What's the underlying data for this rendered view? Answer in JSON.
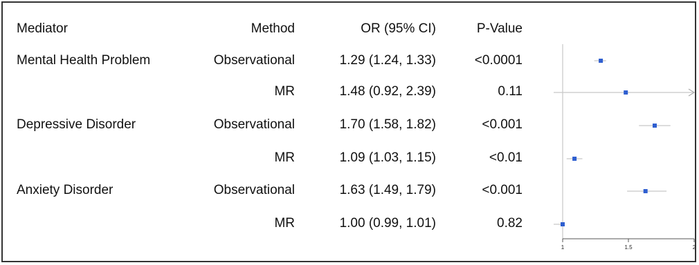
{
  "chart_data": {
    "type": "forest",
    "headers": {
      "mediator": "Mediator",
      "method": "Method",
      "or": "OR (95% CI)",
      "p": "P-Value"
    },
    "rows": [
      {
        "mediator": "Mental Health Problem",
        "method": "Observational",
        "or_text": "1.29 (1.24, 1.33)",
        "p": "<0.0001",
        "est": 1.29,
        "lo": 1.24,
        "hi": 1.33
      },
      {
        "mediator": "",
        "method": "MR",
        "or_text": "1.48 (0.92, 2.39)",
        "p": "0.11",
        "est": 1.48,
        "lo": 0.92,
        "hi": 2.39,
        "clipped_right": true
      },
      {
        "mediator": "Depressive Disorder",
        "method": "Observational",
        "or_text": "1.70 (1.58, 1.82)",
        "p": "<0.001",
        "est": 1.7,
        "lo": 1.58,
        "hi": 1.82
      },
      {
        "mediator": "",
        "method": "MR",
        "or_text": "1.09 (1.03, 1.15)",
        "p": "<0.01",
        "est": 1.09,
        "lo": 1.03,
        "hi": 1.15
      },
      {
        "mediator": "Anxiety Disorder",
        "method": "Observational",
        "or_text": "1.63 (1.49, 1.79)",
        "p": "<0.001",
        "est": 1.63,
        "lo": 1.49,
        "hi": 1.79
      },
      {
        "mediator": "",
        "method": "MR",
        "or_text": "1.00 (0.99, 1.01)",
        "p": "0.82",
        "est": 1.0,
        "lo": 0.99,
        "hi": 1.01
      }
    ],
    "xlim": [
      1,
      2
    ],
    "xticks": [
      1,
      1.5,
      2
    ],
    "xtick_labels": [
      "1",
      "1.5",
      "2"
    ],
    "reference_line": 1,
    "colors": {
      "point": "#2f5fd0",
      "ci": "#c8c8c8",
      "axis": "#bbbbbb",
      "frame": "#333333"
    }
  }
}
